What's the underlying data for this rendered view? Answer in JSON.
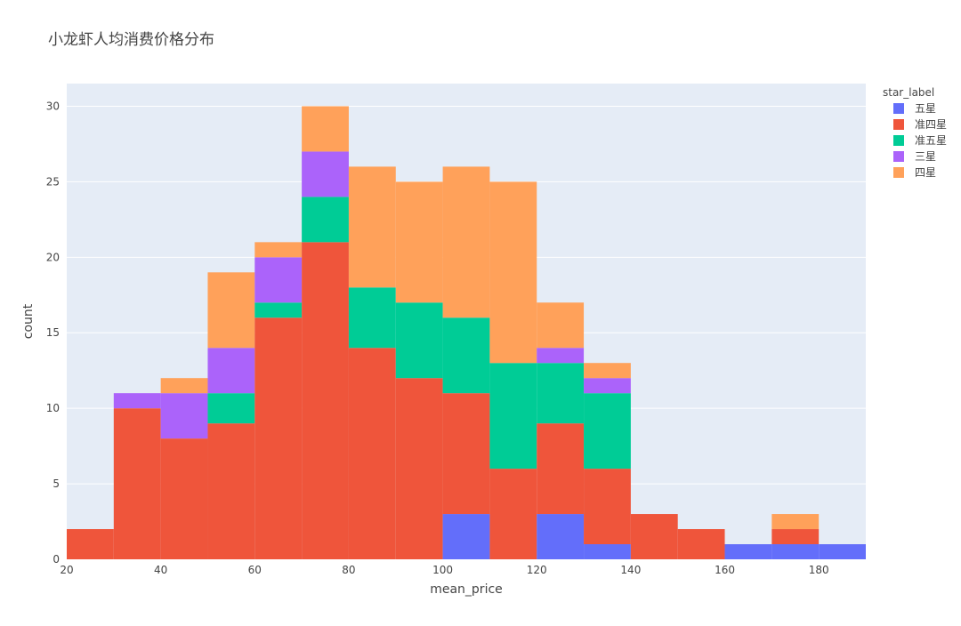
{
  "chart_data": {
    "type": "bar",
    "barmode": "stack",
    "title": "小龙虾人均消费价格分布",
    "xlabel": "mean_price",
    "ylabel": "count",
    "legend_title": "star_label",
    "legend_position": "top-right",
    "bin_width": 10,
    "xlim": [
      20,
      190
    ],
    "ylim": [
      0,
      31.5
    ],
    "x_ticks": [
      20,
      40,
      60,
      80,
      100,
      120,
      140,
      160,
      180
    ],
    "y_ticks": [
      0,
      5,
      10,
      15,
      20,
      25,
      30
    ],
    "grid": true,
    "bins": [
      20,
      30,
      40,
      50,
      60,
      70,
      80,
      90,
      100,
      110,
      120,
      130,
      140,
      150,
      160,
      170,
      180
    ],
    "series": [
      {
        "name": "五星",
        "color": "#636efa",
        "values": [
          0,
          0,
          0,
          0,
          0,
          0,
          0,
          0,
          3,
          0,
          3,
          1,
          0,
          0,
          1,
          1,
          1
        ]
      },
      {
        "name": "准四星",
        "color": "#ef553b",
        "values": [
          2,
          10,
          8,
          9,
          16,
          21,
          14,
          12,
          8,
          6,
          6,
          5,
          3,
          2,
          0,
          1,
          0
        ]
      },
      {
        "name": "准五星",
        "color": "#00cc96",
        "values": [
          0,
          0,
          0,
          2,
          1,
          3,
          4,
          5,
          5,
          7,
          4,
          5,
          0,
          0,
          0,
          0,
          0
        ]
      },
      {
        "name": "三星",
        "color": "#ab63fa",
        "values": [
          0,
          1,
          3,
          3,
          3,
          3,
          0,
          0,
          0,
          0,
          1,
          1,
          0,
          0,
          0,
          0,
          0
        ]
      },
      {
        "name": "四星",
        "color": "#ffa15a",
        "values": [
          0,
          0,
          1,
          5,
          1,
          3,
          8,
          8,
          10,
          12,
          3,
          1,
          0,
          0,
          0,
          1,
          0
        ]
      }
    ]
  }
}
